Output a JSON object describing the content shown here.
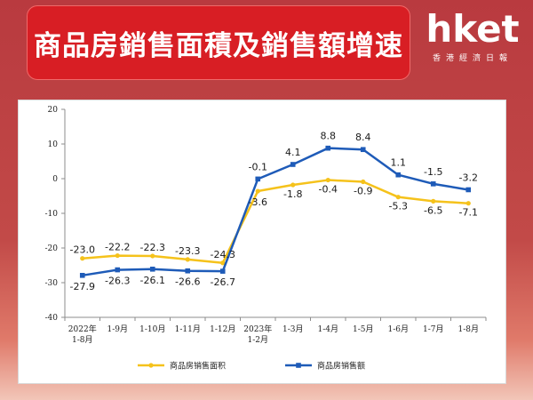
{
  "header": {
    "title": "商品房銷售面積及銷售額增速"
  },
  "brand": {
    "logo_text": "hket",
    "subtitle": "香港經濟日報"
  },
  "colors": {
    "banner_red": "#d81e24",
    "area_series": "#f5c21b",
    "amount_series": "#1e5bb8"
  },
  "chart_data": {
    "type": "line",
    "title": "",
    "xlabel": "",
    "ylabel": "",
    "ylim": [
      -40,
      20
    ],
    "yticks": [
      20,
      10,
      0,
      -10,
      -20,
      -30,
      -40
    ],
    "grid": false,
    "legend_position": "bottom",
    "categories": [
      [
        "2022年",
        "1-8月"
      ],
      [
        "1-9月"
      ],
      [
        "1-10月"
      ],
      [
        "1-11月"
      ],
      [
        "1-12月"
      ],
      [
        "2023年",
        "1-2月"
      ],
      [
        "1-3月"
      ],
      [
        "1-4月"
      ],
      [
        "1-5月"
      ],
      [
        "1-6月"
      ],
      [
        "1-7月"
      ],
      [
        "1-8月"
      ]
    ],
    "series": [
      {
        "name": "商品房销售面积",
        "color": "#f5c21b",
        "values": [
          -23.0,
          -22.2,
          -22.3,
          -23.3,
          -24.3,
          -3.6,
          -1.8,
          -0.4,
          -0.9,
          -5.3,
          -6.5,
          -7.1
        ],
        "labels": [
          "-23.0",
          "-22.2",
          "-22.3",
          "-23.3",
          "-24.3",
          "-3.6",
          "-1.8",
          "-0.4",
          "-0.9",
          "-5.3",
          "-6.5",
          "-7.1"
        ]
      },
      {
        "name": "商品房销售额",
        "color": "#1e5bb8",
        "values": [
          -27.9,
          -26.3,
          -26.1,
          -26.6,
          -26.7,
          -0.1,
          4.1,
          8.8,
          8.4,
          1.1,
          -1.5,
          -3.2
        ],
        "labels": [
          "-27.9",
          "-26.3",
          "-26.1",
          "-26.6",
          "-26.7",
          "-0.1",
          "4.1",
          "8.8",
          "8.4",
          "1.1",
          "-1.5",
          "-3.2"
        ]
      }
    ]
  }
}
